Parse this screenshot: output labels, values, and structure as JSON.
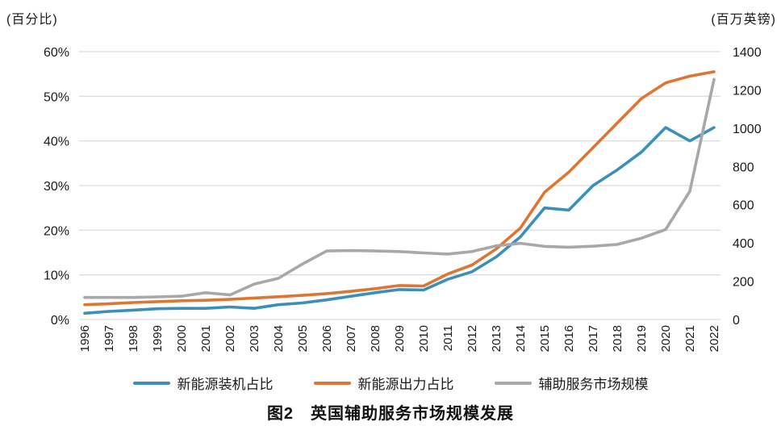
{
  "figure": {
    "left_axis_unit": "(百分比)",
    "right_axis_unit": "(百万英镑)",
    "caption": "图2　英国辅助服务市场规模发展"
  },
  "chart_data": {
    "type": "line",
    "title": "图2 英国辅助服务市场规模发展",
    "x": [
      1996,
      1997,
      1998,
      1999,
      2000,
      2001,
      2002,
      2003,
      2004,
      2005,
      2006,
      2007,
      2008,
      2009,
      2010,
      2011,
      2012,
      2013,
      2014,
      2015,
      2016,
      2017,
      2018,
      2019,
      2020,
      2021,
      2022
    ],
    "series": [
      {
        "name": "新能源装机占比",
        "axis": "left",
        "color": "#3c8fb8",
        "unit": "%",
        "values": [
          1.4,
          1.8,
          2.1,
          2.4,
          2.5,
          2.5,
          2.8,
          2.5,
          3.3,
          3.7,
          4.4,
          5.2,
          6.0,
          6.7,
          6.6,
          9.0,
          10.7,
          14.0,
          18.5,
          25.0,
          24.5,
          30.0,
          33.5,
          37.5,
          43.0,
          40.0,
          43.0
        ]
      },
      {
        "name": "新能源出力占比",
        "axis": "left",
        "color": "#dd7633",
        "unit": "%",
        "values": [
          3.3,
          3.5,
          3.8,
          4.0,
          4.2,
          4.3,
          4.5,
          4.8,
          5.1,
          5.4,
          5.8,
          6.3,
          6.9,
          7.6,
          7.5,
          10.2,
          12.2,
          15.8,
          20.5,
          28.5,
          33.0,
          38.5,
          44.0,
          49.5,
          53.0,
          54.5,
          55.5
        ]
      },
      {
        "name": "辅助服务市场规模",
        "axis": "right",
        "color": "#a8a8a8",
        "unit": "百万英镑",
        "values": [
          115,
          115,
          115,
          118,
          122,
          140,
          128,
          185,
          215,
          290,
          358,
          360,
          358,
          355,
          348,
          342,
          355,
          385,
          398,
          382,
          378,
          383,
          392,
          425,
          470,
          670,
          1255
        ]
      }
    ],
    "left_axis": {
      "unit": "(百分比)",
      "min": 0,
      "max": 60,
      "tick_labels": [
        "0%",
        "10%",
        "20%",
        "30%",
        "40%",
        "50%",
        "60%"
      ]
    },
    "right_axis": {
      "unit": "(百万英镑)",
      "min": 0,
      "max": 1400,
      "tick_labels": [
        "0",
        "200",
        "400",
        "600",
        "800",
        "1000",
        "1200",
        "1400"
      ]
    },
    "grid": "horizontal",
    "legend_position": "bottom"
  }
}
